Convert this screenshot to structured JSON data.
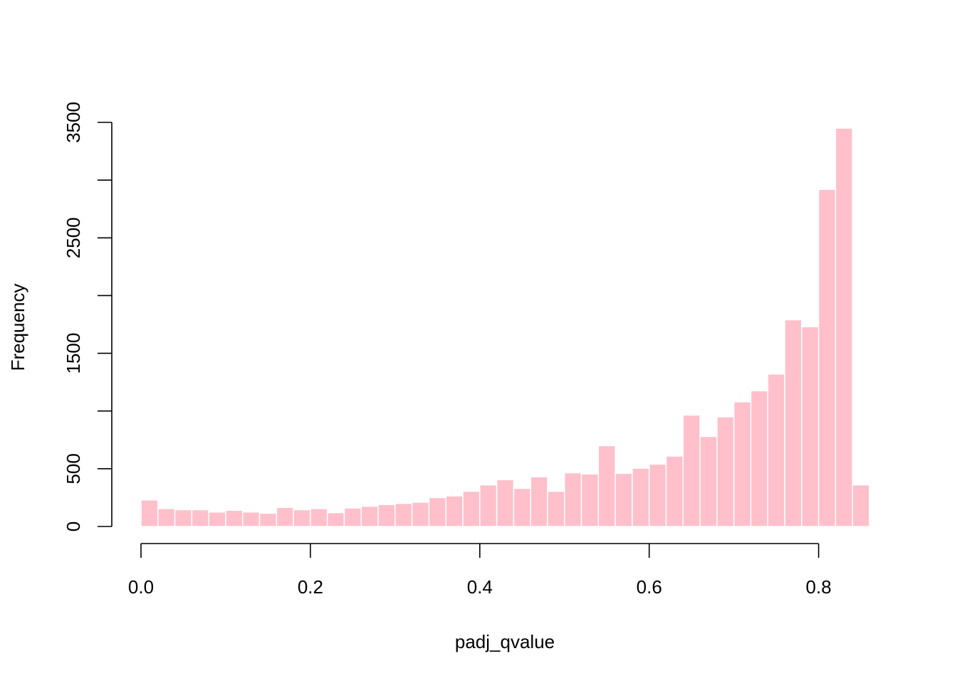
{
  "chart_data": {
    "type": "bar",
    "title": "",
    "xlabel": "padj_qvalue",
    "ylabel": "Frequency",
    "bar_color": "#FFC0CB",
    "bar_border_color": "#FFFFFF",
    "bin_width": 0.02,
    "x_start": 0.0,
    "xlim": [
      0.0,
      0.86
    ],
    "ylim": [
      0,
      3500
    ],
    "x_ticks": [
      0.0,
      0.2,
      0.4,
      0.6,
      0.8
    ],
    "x_tick_labels": [
      "0.0",
      "0.2",
      "0.4",
      "0.6",
      "0.8"
    ],
    "y_ticks": [
      0,
      500,
      1000,
      1500,
      2000,
      2500,
      3000,
      3500
    ],
    "y_tick_labels": [
      "0",
      "500",
      "",
      "1500",
      "",
      "2500",
      "",
      "3500"
    ],
    "values": [
      230,
      155,
      145,
      145,
      125,
      140,
      125,
      115,
      165,
      145,
      155,
      120,
      160,
      175,
      190,
      200,
      210,
      250,
      265,
      305,
      360,
      405,
      330,
      430,
      305,
      465,
      455,
      700,
      460,
      505,
      540,
      610,
      965,
      780,
      950,
      1080,
      1175,
      1320,
      1790,
      1730,
      2920,
      3450,
      360
    ],
    "grid": false,
    "legend": "none"
  }
}
